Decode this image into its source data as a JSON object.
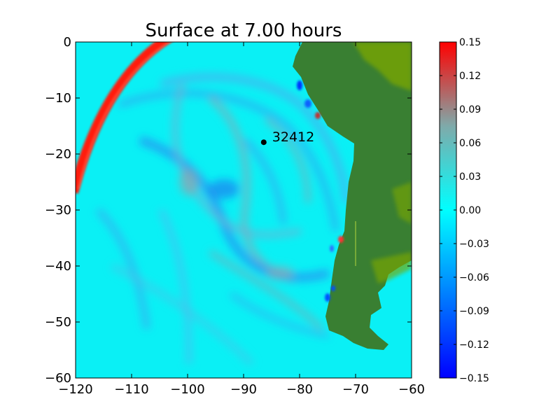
{
  "chart_data": {
    "type": "heatmap",
    "title": "Surface at 7.00 hours",
    "xlabel": "",
    "ylabel": "",
    "xlim": [
      -120,
      -60
    ],
    "ylim": [
      -60,
      0
    ],
    "x_ticks": [
      -120,
      -110,
      -100,
      -90,
      -80,
      -70,
      -60
    ],
    "y_ticks": [
      0,
      -10,
      -20,
      -30,
      -40,
      -50,
      -60
    ],
    "x_tick_labels": [
      "−120",
      "−110",
      "−100",
      "−90",
      "−80",
      "−70",
      "−60"
    ],
    "y_tick_labels": [
      "0",
      "−10",
      "−20",
      "−30",
      "−40",
      "−50",
      "−60"
    ],
    "grid": false,
    "colorbar": {
      "range": [
        -0.15,
        0.15
      ],
      "ticks": [
        0.15,
        0.12,
        0.09,
        0.06,
        0.03,
        0.0,
        -0.03,
        -0.06,
        -0.09,
        -0.12,
        -0.15
      ],
      "tick_labels": [
        "0.15",
        "0.12",
        "0.09",
        "0.06",
        "0.03",
        "0.00",
        "−0.03",
        "−0.06",
        "−0.09",
        "−0.12",
        "−0.15"
      ],
      "colors": [
        "#0000ff",
        "#00ffff",
        "#ff0000"
      ]
    },
    "gauge": {
      "label": "32412",
      "x": -86.4,
      "y": -17.9
    },
    "colors": {
      "ocean_base": "#0af0f5",
      "land": "#397f32",
      "highland": "#7ba700",
      "wave_front": "#ff1a0a"
    }
  }
}
